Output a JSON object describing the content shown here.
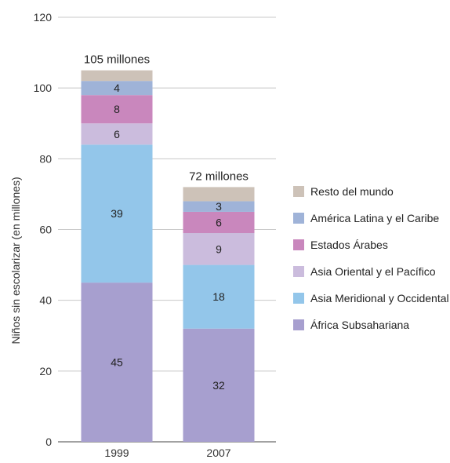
{
  "chart_data": {
    "type": "bar",
    "stacked": true,
    "categories": [
      "1999",
      "2007"
    ],
    "ylabel": "Niños sin escolarizar (en millones)",
    "ylim": [
      0,
      120
    ],
    "yticks": [
      0,
      20,
      40,
      60,
      80,
      100,
      120
    ],
    "grid": true,
    "legend_position": "right",
    "totals": [
      105,
      72
    ],
    "total_labels": [
      "105 millones",
      "72 millones"
    ],
    "series": [
      {
        "name": "África Subsahariana",
        "values": [
          45,
          32
        ],
        "color": "#a79fcf",
        "labels": [
          "45",
          "32"
        ]
      },
      {
        "name": "Asia Meridional y Occidental",
        "values": [
          39,
          18
        ],
        "color": "#93c6ea",
        "labels": [
          "39",
          "18"
        ]
      },
      {
        "name": "Asia Oriental y el Pacífico",
        "values": [
          6,
          9
        ],
        "color": "#cbbcdd",
        "labels": [
          "6",
          "9"
        ]
      },
      {
        "name": "Estados Árabes",
        "values": [
          8,
          6
        ],
        "color": "#c987bd",
        "labels": [
          "8",
          "6"
        ]
      },
      {
        "name": "América Latina y el Caribe",
        "values": [
          4,
          3
        ],
        "color": "#9fb3d8",
        "labels": [
          "4",
          "3"
        ]
      },
      {
        "name": "Resto del mundo",
        "values": [
          3,
          4
        ],
        "color": "#cdc2b8",
        "labels": [
          "",
          ""
        ]
      }
    ],
    "legend_order": [
      "Resto del mundo",
      "América Latina y el Caribe",
      "Estados Árabes",
      "Asia Oriental y el Pacífico",
      "Asia Meridional y Occidental",
      "África Subsahariana"
    ]
  }
}
